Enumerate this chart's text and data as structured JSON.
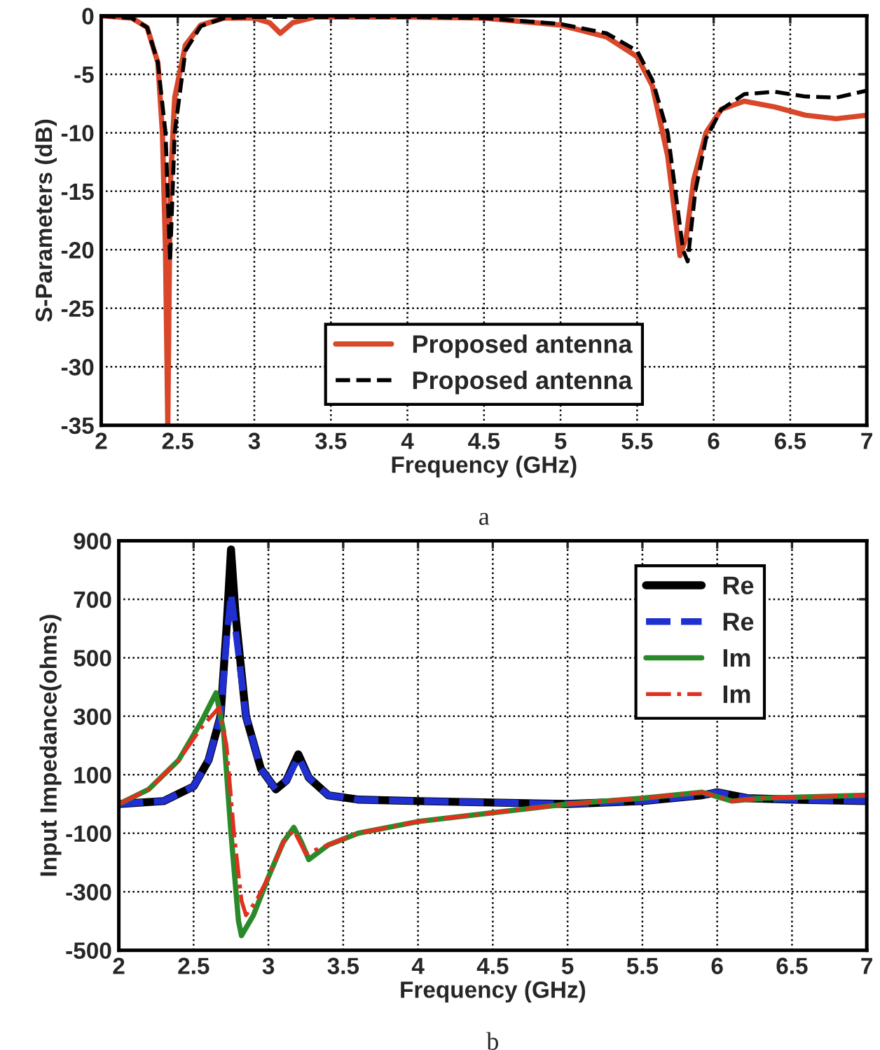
{
  "chart_data": [
    {
      "type": "line",
      "xlabel": "Frequency (GHz)",
      "ylabel": "S-Parameters (dB)",
      "annotations": [
        "a"
      ],
      "xlim": [
        2,
        7
      ],
      "ylim": [
        -35,
        0
      ],
      "xticks": [
        2,
        2.5,
        3,
        3.5,
        4,
        4.5,
        5,
        5.5,
        6,
        6.5,
        7
      ],
      "yticks": [
        -35,
        -30,
        -25,
        -20,
        -15,
        -10,
        -5,
        0
      ],
      "grid": true,
      "legend": "bottom",
      "marker": "none",
      "series": [
        {
          "name": "Proposed antenna",
          "color": "#d9472b",
          "line_style": "solid",
          "x": [
            2,
            2.2,
            2.3,
            2.37,
            2.4,
            2.42,
            2.435,
            2.45,
            2.48,
            2.55,
            2.65,
            2.8,
            3.0,
            3.1,
            3.17,
            3.25,
            3.4,
            4,
            4.5,
            5.0,
            5.3,
            5.5,
            5.6,
            5.7,
            5.78,
            5.82,
            5.87,
            5.95,
            6.05,
            6.2,
            6.4,
            6.6,
            6.8,
            7.0
          ],
          "values": [
            0,
            -0.2,
            -1,
            -4,
            -10,
            -20,
            -35,
            -15,
            -7,
            -2.5,
            -0.8,
            -0.2,
            -0.2,
            -0.6,
            -1.5,
            -0.6,
            -0.1,
            -0.1,
            -0.2,
            -0.8,
            -1.8,
            -3.5,
            -6,
            -12,
            -20.5,
            -19,
            -14,
            -10,
            -8,
            -7.3,
            -7.8,
            -8.5,
            -8.8,
            -8.5
          ]
        },
        {
          "name": "Proposed antenna",
          "color": "#000000",
          "line_style": "dashed",
          "x": [
            2,
            2.2,
            2.3,
            2.37,
            2.42,
            2.45,
            2.48,
            2.55,
            2.65,
            2.8,
            3,
            4,
            4.5,
            5,
            5.3,
            5.5,
            5.6,
            5.7,
            5.8,
            5.83,
            5.88,
            5.95,
            6.05,
            6.2,
            6.4,
            6.6,
            6.8,
            7.0
          ],
          "values": [
            0,
            -0.2,
            -1,
            -4,
            -10,
            -21,
            -10,
            -3,
            -0.9,
            -0.2,
            -0.1,
            -0.1,
            -0.2,
            -0.7,
            -1.5,
            -3,
            -5.5,
            -10,
            -20,
            -21,
            -15,
            -10.5,
            -8,
            -6.7,
            -6.5,
            -6.9,
            -7,
            -6.4
          ]
        }
      ]
    },
    {
      "type": "line",
      "xlabel": "Frequency (GHz)",
      "ylabel": "Input Impedance(ohms)",
      "annotations": [
        "b"
      ],
      "xlim": [
        2,
        7
      ],
      "ylim": [
        -500,
        900
      ],
      "xticks": [
        2,
        2.5,
        3,
        3.5,
        4,
        4.5,
        5,
        5.5,
        6,
        6.5,
        7
      ],
      "yticks": [
        -500,
        -300,
        -100,
        100,
        300,
        500,
        700,
        900
      ],
      "grid": true,
      "legend": "top right",
      "marker": "none",
      "series": [
        {
          "name": "Re",
          "color": "#000000",
          "line_style": "solid",
          "x": [
            2,
            2.3,
            2.5,
            2.6,
            2.68,
            2.72,
            2.75,
            2.78,
            2.85,
            2.95,
            3.05,
            3.12,
            3.2,
            3.27,
            3.4,
            3.6,
            4,
            5,
            5.5,
            5.9,
            6,
            6.2,
            6.5,
            7
          ],
          "values": [
            0,
            10,
            60,
            150,
            300,
            600,
            870,
            650,
            300,
            120,
            50,
            80,
            170,
            90,
            30,
            15,
            10,
            0,
            10,
            30,
            40,
            20,
            15,
            10
          ]
        },
        {
          "name": "Re",
          "color": "#1f2fd0",
          "line_style": "dashed",
          "x": [
            2,
            2.3,
            2.5,
            2.6,
            2.68,
            2.72,
            2.75,
            2.78,
            2.85,
            2.95,
            3.05,
            3.12,
            3.2,
            3.27,
            3.4,
            3.6,
            4,
            5,
            5.5,
            5.9,
            6,
            6.2,
            6.5,
            7
          ],
          "values": [
            0,
            10,
            60,
            150,
            300,
            560,
            720,
            600,
            300,
            120,
            50,
            80,
            160,
            90,
            30,
            15,
            10,
            0,
            10,
            30,
            40,
            20,
            15,
            10
          ]
        },
        {
          "name": "Im",
          "color": "#2a8a2a",
          "line_style": "solid",
          "x": [
            2,
            2.2,
            2.4,
            2.55,
            2.65,
            2.7,
            2.75,
            2.8,
            2.82,
            2.9,
            3,
            3.1,
            3.17,
            3.22,
            3.27,
            3.4,
            3.6,
            4,
            4.5,
            5,
            5.5,
            5.9,
            6.1,
            6.3,
            7
          ],
          "values": [
            0,
            50,
            150,
            280,
            380,
            250,
            -100,
            -400,
            -450,
            -380,
            -250,
            -130,
            -80,
            -130,
            -190,
            -140,
            -100,
            -60,
            -30,
            0,
            20,
            40,
            10,
            20,
            30
          ]
        },
        {
          "name": "Im",
          "color": "#e03020",
          "line_style": "dashdot",
          "x": [
            2,
            2.2,
            2.4,
            2.55,
            2.67,
            2.72,
            2.77,
            2.82,
            2.85,
            2.92,
            3,
            3.1,
            3.17,
            3.25,
            3.4,
            3.6,
            4,
            4.5,
            5,
            5.5,
            5.9,
            6.1,
            6.3,
            7
          ],
          "values": [
            0,
            50,
            150,
            260,
            330,
            200,
            -100,
            -330,
            -380,
            -330,
            -250,
            -130,
            -90,
            -170,
            -140,
            -100,
            -60,
            -30,
            0,
            20,
            40,
            10,
            20,
            30
          ]
        }
      ]
    }
  ]
}
